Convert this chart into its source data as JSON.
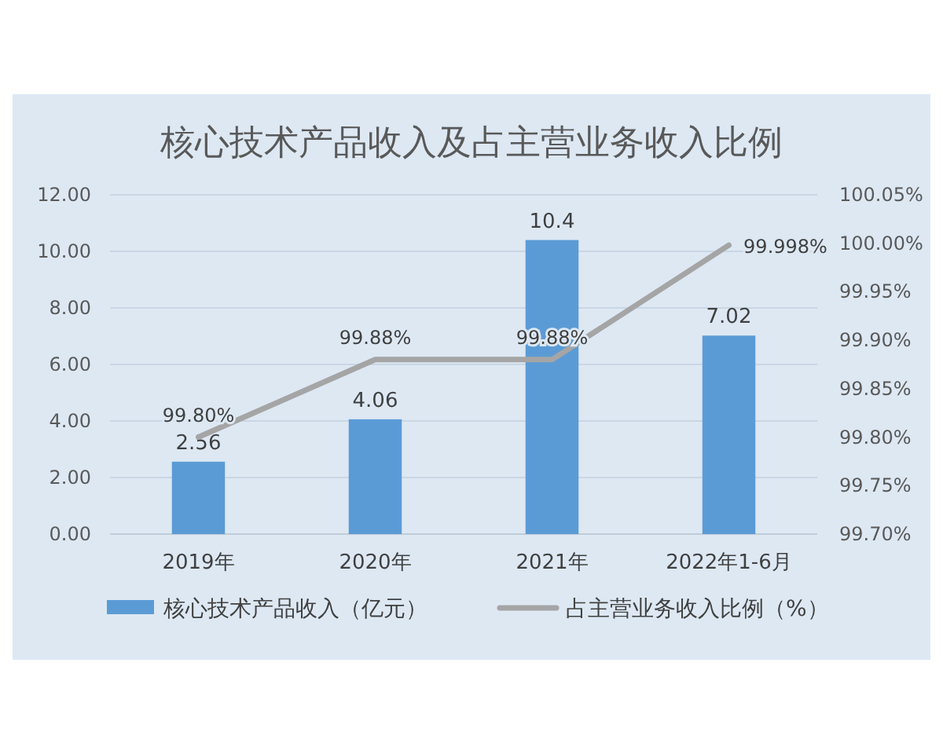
{
  "chart_data": {
    "type": "bar",
    "title": "核心技术产品收入及占主营业务收入比例",
    "categories": [
      "2019年",
      "2020年",
      "2021年",
      "2022年1-6月"
    ],
    "series": [
      {
        "name": "核心技术产品收入（亿元）",
        "color": "#5b9bd5",
        "values": [
          2.56,
          4.06,
          10.4,
          7.02
        ],
        "value_labels": [
          "2.56",
          "4.06",
          "10.4",
          "7.02"
        ]
      },
      {
        "name": "占主营业务收入比例（%）",
        "type": "line",
        "axis": "y2",
        "color": "#a5a5a5",
        "values": [
          99.8,
          99.88,
          99.88,
          99.998
        ],
        "value_labels": [
          "99.80%",
          "99.88%",
          "99.88%",
          "99.998%"
        ]
      }
    ],
    "ylim": [
      0,
      12
    ],
    "yticks": [
      {
        "value": 0,
        "label": "0.00"
      },
      {
        "value": 2,
        "label": "2.00"
      },
      {
        "value": 4,
        "label": "4.00"
      },
      {
        "value": 6,
        "label": "6.00"
      },
      {
        "value": 8,
        "label": "8.00"
      },
      {
        "value": 10,
        "label": "10.00"
      },
      {
        "value": 12,
        "label": "12.00"
      }
    ],
    "y2lim": [
      99.7,
      100.05
    ],
    "y2ticks": [
      {
        "value": 99.7,
        "label": "99.70%"
      },
      {
        "value": 99.75,
        "label": "99.75%"
      },
      {
        "value": 99.8,
        "label": "99.80%"
      },
      {
        "value": 99.85,
        "label": "99.85%"
      },
      {
        "value": 99.9,
        "label": "99.90%"
      },
      {
        "value": 99.95,
        "label": "99.95%"
      },
      {
        "value": 100,
        "label": "100.00%"
      },
      {
        "value": 100.05,
        "label": "100.05%"
      }
    ],
    "grid": "y",
    "legend": "bottom",
    "marker": "none",
    "line_style": "solid"
  }
}
